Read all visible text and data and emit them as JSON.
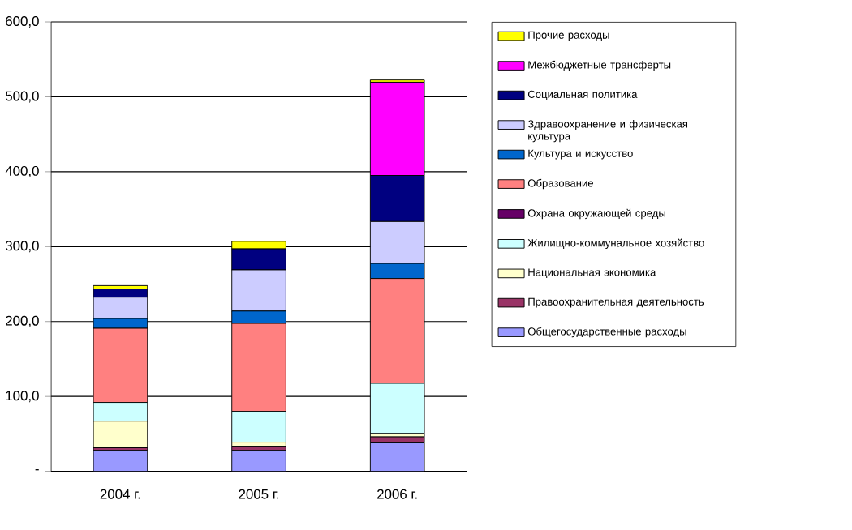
{
  "chart_data": {
    "type": "bar",
    "stacked": true,
    "categories": [
      "2004 г.",
      "2005 г.",
      "2006 г."
    ],
    "ylim": [
      0,
      600
    ],
    "yticks": [
      {
        "value": 0,
        "label": "-"
      },
      {
        "value": 100,
        "label": "100,0"
      },
      {
        "value": 200,
        "label": "200,0"
      },
      {
        "value": 300,
        "label": "300,0"
      },
      {
        "value": 400,
        "label": "400,0"
      },
      {
        "value": 500,
        "label": "500,0"
      },
      {
        "value": 600,
        "label": "600,0"
      }
    ],
    "grid": "y",
    "legend": "right",
    "series": [
      {
        "name": "Общегосударственные расходы",
        "color": "#9999ff",
        "values": [
          28,
          28,
          38
        ]
      },
      {
        "name": "Правоохранительная деятельность",
        "color": "#993366",
        "values": [
          3.5,
          5.5,
          8
        ]
      },
      {
        "name": "Национальная экономика",
        "color": "#ffffcc",
        "values": [
          35.5,
          5.5,
          4.5
        ]
      },
      {
        "name": "Жилищно-коммунальное хозяйство",
        "color": "#ccffff",
        "values": [
          25,
          41,
          67
        ]
      },
      {
        "name": "Охрана окружающей среды",
        "color": "#660066",
        "values": [
          0,
          0,
          0
        ]
      },
      {
        "name": "Образование",
        "color": "#ff8080",
        "values": [
          99,
          117.5,
          140
        ]
      },
      {
        "name": "Культура и искусство",
        "color": "#0066cc",
        "values": [
          13,
          16.5,
          20
        ]
      },
      {
        "name": "Здравоохранение и физическая культура",
        "color": "#ccccff",
        "values": [
          28.5,
          55,
          56
        ]
      },
      {
        "name": "Социальная политика",
        "color": "#000080",
        "values": [
          11,
          28,
          61.5
        ]
      },
      {
        "name": "Межбюджетные трансферты",
        "color": "#ff00ff",
        "values": [
          0,
          0,
          124.5
        ]
      },
      {
        "name": "Прочие расходы",
        "color": "#ffff00",
        "values": [
          4.5,
          10,
          3
        ]
      }
    ]
  }
}
